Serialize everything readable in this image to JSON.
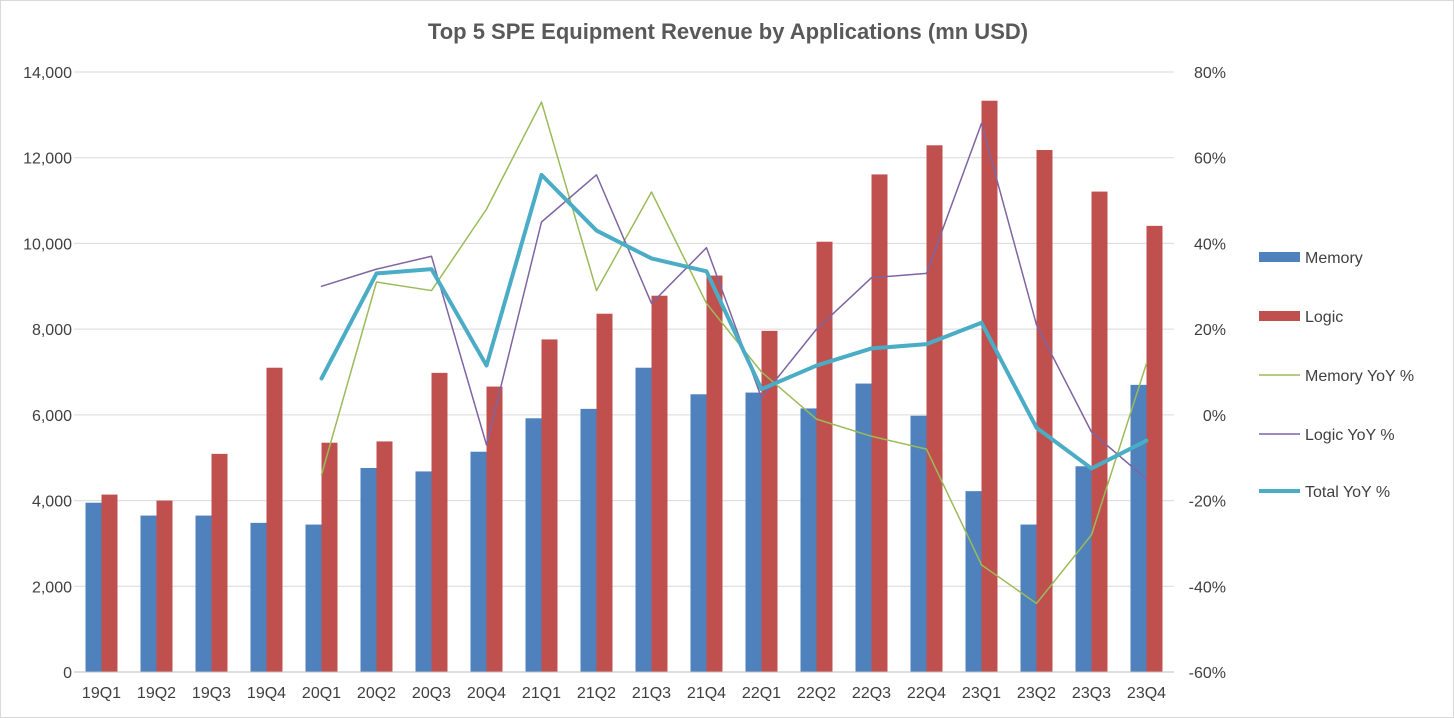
{
  "chart_data": {
    "type": "bar",
    "title": "Top 5 SPE Equipment Revenue by Applications (mn USD)",
    "xlabel": "",
    "ylabel": "",
    "y2label": "",
    "categories": [
      "19Q1",
      "19Q2",
      "19Q3",
      "19Q4",
      "20Q1",
      "20Q2",
      "20Q3",
      "20Q4",
      "21Q1",
      "21Q2",
      "21Q3",
      "21Q4",
      "22Q1",
      "22Q2",
      "22Q3",
      "22Q4",
      "23Q1",
      "23Q2",
      "23Q3",
      "23Q4"
    ],
    "ylim": [
      0,
      14000
    ],
    "yticks": [
      0,
      2000,
      4000,
      6000,
      8000,
      10000,
      12000,
      14000
    ],
    "ytick_labels": [
      "0",
      "2,000",
      "4,000",
      "6,000",
      "8,000",
      "10,000",
      "12,000",
      "14,000"
    ],
    "y2lim": [
      -60,
      80
    ],
    "y2ticks": [
      -60,
      -40,
      -20,
      0,
      20,
      40,
      60,
      80
    ],
    "y2tick_labels": [
      "-60%",
      "-40%",
      "-20%",
      "0%",
      "20%",
      "40%",
      "60%",
      "80%"
    ],
    "grid": true,
    "legend_position": "right",
    "series": [
      {
        "name": "Memory",
        "kind": "bar",
        "axis": "left",
        "color": "#4f81bd",
        "values": [
          3950,
          3650,
          3650,
          3480,
          3440,
          4760,
          4680,
          5140,
          5920,
          6140,
          7100,
          6480,
          6520,
          6150,
          6730,
          5980,
          4220,
          3440,
          4800,
          6700
        ]
      },
      {
        "name": "Logic",
        "kind": "bar",
        "axis": "left",
        "color": "#c0504d",
        "values": [
          4140,
          4000,
          5090,
          7100,
          5350,
          5380,
          6980,
          6660,
          7760,
          8360,
          8780,
          9250,
          7960,
          10040,
          11610,
          12290,
          13330,
          12180,
          11210,
          10410
        ]
      },
      {
        "name": "Memory YoY %",
        "kind": "line",
        "axis": "right",
        "color": "#9bbb59",
        "width": 1.5,
        "values": [
          null,
          null,
          null,
          null,
          -14,
          31,
          29,
          48,
          73,
          29,
          52,
          26,
          10,
          -1,
          -5,
          -8,
          -35,
          -44,
          -28,
          12
        ]
      },
      {
        "name": "Logic YoY %",
        "kind": "line",
        "axis": "right",
        "color": "#8064a2",
        "width": 1.5,
        "values": [
          null,
          null,
          null,
          null,
          30,
          34,
          37,
          -7,
          45,
          56,
          26,
          39,
          4,
          20,
          32,
          33,
          68,
          21,
          -4,
          -15
        ]
      },
      {
        "name": "Total YoY %",
        "kind": "line",
        "axis": "right",
        "color": "#4bacc6",
        "width": 4,
        "values": [
          null,
          null,
          null,
          null,
          8.5,
          33,
          34,
          11.5,
          56,
          43,
          36.5,
          33.5,
          6,
          11.5,
          15.5,
          16.5,
          21.5,
          -3,
          -12.5,
          -6
        ]
      }
    ]
  }
}
